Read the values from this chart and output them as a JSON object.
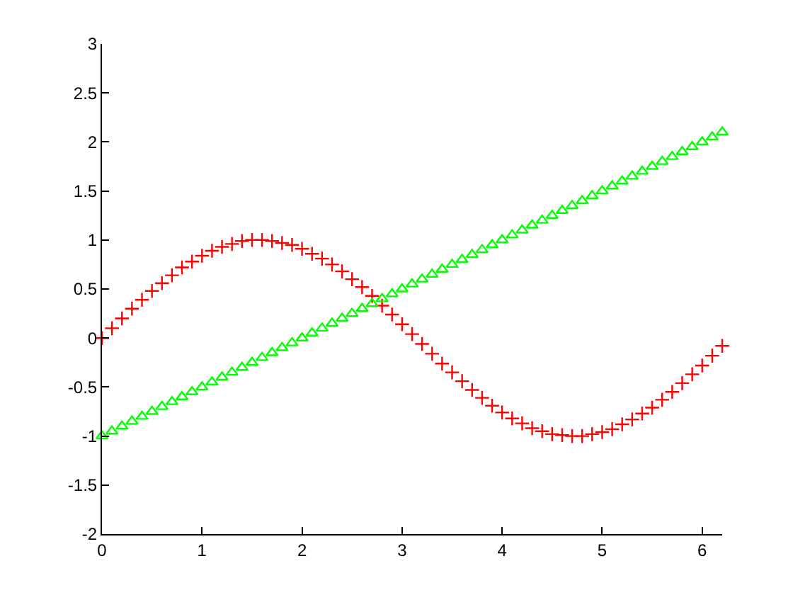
{
  "chart_data": {
    "type": "scatter",
    "x": [
      0,
      0.1,
      0.2,
      0.3,
      0.4,
      0.5,
      0.6,
      0.7,
      0.8,
      0.9,
      1,
      1.1,
      1.2,
      1.3,
      1.4,
      1.5,
      1.6,
      1.7,
      1.8,
      1.9,
      2,
      2.1,
      2.2,
      2.3,
      2.4,
      2.5,
      2.6,
      2.7,
      2.8,
      2.9,
      3,
      3.1,
      3.2,
      3.3,
      3.4,
      3.5,
      3.6,
      3.7,
      3.8,
      3.9,
      4,
      4.1,
      4.2,
      4.3,
      4.4,
      4.5,
      4.6,
      4.7,
      4.8,
      4.9,
      5,
      5.1,
      5.2,
      5.3,
      5.4,
      5.5,
      5.6,
      5.7,
      5.8,
      5.9,
      6,
      6.1,
      6.2
    ],
    "series": [
      {
        "color": "#ff0000",
        "marker": "cross",
        "values": [
          0,
          0.1,
          0.2,
          0.3,
          0.39,
          0.48,
          0.56,
          0.64,
          0.72,
          0.78,
          0.84,
          0.89,
          0.93,
          0.96,
          0.99,
          1,
          1,
          0.99,
          0.97,
          0.95,
          0.91,
          0.86,
          0.81,
          0.75,
          0.68,
          0.6,
          0.52,
          0.43,
          0.33,
          0.24,
          0.14,
          0.04,
          -0.06,
          -0.16,
          -0.26,
          -0.35,
          -0.44,
          -0.53,
          -0.61,
          -0.69,
          -0.76,
          -0.82,
          -0.87,
          -0.92,
          -0.95,
          -0.98,
          -0.99,
          -1,
          -1,
          -0.98,
          -0.96,
          -0.93,
          -0.88,
          -0.83,
          -0.77,
          -0.71,
          -0.63,
          -0.55,
          -0.46,
          -0.37,
          -0.28,
          -0.18,
          -0.08
        ]
      },
      {
        "color": "#00ff00",
        "marker": "triangle",
        "values": [
          -1,
          -0.95,
          -0.9,
          -0.85,
          -0.8,
          -0.75,
          -0.7,
          -0.65,
          -0.6,
          -0.55,
          -0.5,
          -0.45,
          -0.4,
          -0.35,
          -0.3,
          -0.25,
          -0.2,
          -0.15,
          -0.1,
          -0.05,
          0,
          0.05,
          0.1,
          0.15,
          0.2,
          0.25,
          0.3,
          0.35,
          0.4,
          0.45,
          0.5,
          0.55,
          0.6,
          0.65,
          0.7,
          0.75,
          0.8,
          0.85,
          0.9,
          0.95,
          1,
          1.05,
          1.1,
          1.15,
          1.2,
          1.25,
          1.3,
          1.35,
          1.4,
          1.45,
          1.5,
          1.55,
          1.6,
          1.65,
          1.7,
          1.75,
          1.8,
          1.85,
          1.9,
          1.95,
          2,
          2.05,
          2.1
        ]
      }
    ],
    "xlim": [
      0,
      6.2
    ],
    "xticks": [
      0,
      1,
      2,
      3,
      4,
      5,
      6
    ],
    "ylim": [
      -2,
      3
    ],
    "yticks": [
      -2,
      -1.5,
      -1,
      -0.5,
      0,
      0.5,
      1,
      1.5,
      2,
      2.5,
      3
    ]
  }
}
